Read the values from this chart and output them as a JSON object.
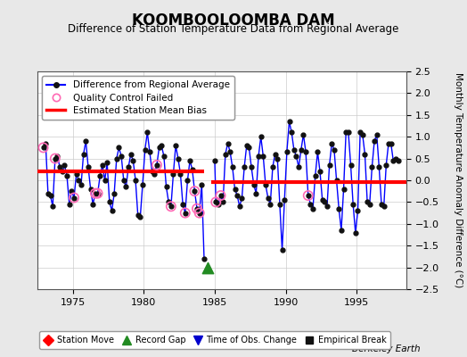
{
  "title": "KOOMBOOLOOMBA DAM",
  "subtitle": "Difference of Station Temperature Data from Regional Average",
  "ylabel": "Monthly Temperature Anomaly Difference (°C)",
  "xlim": [
    1972.5,
    1998.5
  ],
  "ylim": [
    -2.5,
    2.5
  ],
  "xticks": [
    1975,
    1980,
    1985,
    1990,
    1995
  ],
  "yticks": [
    -2.5,
    -2,
    -1.5,
    -1,
    -0.5,
    0,
    0.5,
    1,
    1.5,
    2,
    2.5
  ],
  "bias_segments": [
    {
      "x": [
        1972.5,
        1984.25
      ],
      "y": [
        0.2,
        0.2
      ]
    },
    {
      "x": [
        1984.75,
        1998.5
      ],
      "y": [
        -0.05,
        -0.05
      ]
    }
  ],
  "gap_x": 1984.5,
  "record_gap_x": 1984.5,
  "record_gap_y": -2.0,
  "main_line_color": "#0000ff",
  "bias_color": "#ff0000",
  "qc_color": "#ff69b4",
  "background_color": "#e8e8e8",
  "plot_bg_color": "#ffffff",
  "time_series": [
    [
      1972.917,
      0.75
    ],
    [
      1973.083,
      0.85
    ],
    [
      1973.25,
      -0.3
    ],
    [
      1973.417,
      -0.35
    ],
    [
      1973.583,
      -0.6
    ],
    [
      1973.75,
      0.5
    ],
    [
      1973.917,
      0.55
    ],
    [
      1974.083,
      0.3
    ],
    [
      1974.25,
      0.2
    ],
    [
      1974.417,
      0.35
    ],
    [
      1974.583,
      0.1
    ],
    [
      1974.75,
      -0.55
    ],
    [
      1974.917,
      -0.25
    ],
    [
      1975.083,
      -0.4
    ],
    [
      1975.25,
      0.15
    ],
    [
      1975.417,
      0.0
    ],
    [
      1975.583,
      -0.1
    ],
    [
      1975.75,
      0.6
    ],
    [
      1975.917,
      0.9
    ],
    [
      1976.083,
      0.3
    ],
    [
      1976.25,
      -0.2
    ],
    [
      1976.417,
      -0.55
    ],
    [
      1976.583,
      -0.3
    ],
    [
      1976.75,
      -0.3
    ],
    [
      1976.917,
      0.1
    ],
    [
      1977.083,
      0.35
    ],
    [
      1977.25,
      0.0
    ],
    [
      1977.417,
      0.4
    ],
    [
      1977.583,
      -0.5
    ],
    [
      1977.75,
      -0.7
    ],
    [
      1977.917,
      -0.3
    ],
    [
      1978.083,
      0.5
    ],
    [
      1978.25,
      0.75
    ],
    [
      1978.417,
      0.55
    ],
    [
      1978.583,
      0.0
    ],
    [
      1978.75,
      -0.15
    ],
    [
      1978.917,
      0.3
    ],
    [
      1979.083,
      0.6
    ],
    [
      1979.25,
      0.45
    ],
    [
      1979.417,
      0.0
    ],
    [
      1979.583,
      -0.8
    ],
    [
      1979.75,
      -0.85
    ],
    [
      1979.917,
      -0.1
    ],
    [
      1980.083,
      0.7
    ],
    [
      1980.25,
      1.1
    ],
    [
      1980.417,
      0.65
    ],
    [
      1980.583,
      0.2
    ],
    [
      1980.75,
      0.15
    ],
    [
      1980.917,
      0.35
    ],
    [
      1981.083,
      0.75
    ],
    [
      1981.25,
      0.8
    ],
    [
      1981.417,
      0.55
    ],
    [
      1981.583,
      -0.15
    ],
    [
      1981.75,
      -0.5
    ],
    [
      1981.917,
      -0.6
    ],
    [
      1982.083,
      0.15
    ],
    [
      1982.25,
      0.8
    ],
    [
      1982.417,
      0.5
    ],
    [
      1982.583,
      0.15
    ],
    [
      1982.75,
      -0.55
    ],
    [
      1982.917,
      -0.75
    ],
    [
      1983.083,
      0.0
    ],
    [
      1983.25,
      0.45
    ],
    [
      1983.417,
      0.25
    ],
    [
      1983.583,
      -0.25
    ],
    [
      1983.75,
      -0.65
    ],
    [
      1983.917,
      -0.75
    ],
    [
      1984.083,
      -0.1
    ],
    [
      1984.25,
      -1.8
    ],
    [
      1985.0,
      0.45
    ],
    [
      1985.083,
      -0.5
    ],
    [
      1985.25,
      -0.55
    ],
    [
      1985.417,
      -0.35
    ],
    [
      1985.583,
      -0.5
    ],
    [
      1985.75,
      0.6
    ],
    [
      1985.917,
      0.85
    ],
    [
      1986.083,
      0.65
    ],
    [
      1986.25,
      0.3
    ],
    [
      1986.417,
      -0.2
    ],
    [
      1986.583,
      -0.35
    ],
    [
      1986.75,
      -0.6
    ],
    [
      1986.917,
      -0.4
    ],
    [
      1987.083,
      0.3
    ],
    [
      1987.25,
      0.8
    ],
    [
      1987.417,
      0.75
    ],
    [
      1987.583,
      0.3
    ],
    [
      1987.75,
      -0.1
    ],
    [
      1987.917,
      -0.3
    ],
    [
      1988.083,
      0.55
    ],
    [
      1988.25,
      1.0
    ],
    [
      1988.417,
      0.55
    ],
    [
      1988.583,
      -0.1
    ],
    [
      1988.75,
      -0.4
    ],
    [
      1988.917,
      -0.55
    ],
    [
      1989.083,
      0.3
    ],
    [
      1989.25,
      0.6
    ],
    [
      1989.417,
      0.5
    ],
    [
      1989.583,
      -0.55
    ],
    [
      1989.75,
      -1.6
    ],
    [
      1989.917,
      -0.45
    ],
    [
      1990.083,
      0.65
    ],
    [
      1990.25,
      1.35
    ],
    [
      1990.417,
      1.1
    ],
    [
      1990.583,
      0.7
    ],
    [
      1990.75,
      0.55
    ],
    [
      1990.917,
      0.3
    ],
    [
      1991.083,
      0.7
    ],
    [
      1991.25,
      1.05
    ],
    [
      1991.417,
      0.65
    ],
    [
      1991.583,
      -0.35
    ],
    [
      1991.75,
      -0.55
    ],
    [
      1991.917,
      -0.65
    ],
    [
      1992.083,
      0.1
    ],
    [
      1992.25,
      0.65
    ],
    [
      1992.417,
      0.2
    ],
    [
      1992.583,
      -0.45
    ],
    [
      1992.75,
      -0.5
    ],
    [
      1992.917,
      -0.6
    ],
    [
      1993.083,
      0.35
    ],
    [
      1993.25,
      0.85
    ],
    [
      1993.417,
      0.7
    ],
    [
      1993.583,
      0.0
    ],
    [
      1993.75,
      -0.65
    ],
    [
      1993.917,
      -1.15
    ],
    [
      1994.083,
      -0.2
    ],
    [
      1994.25,
      1.1
    ],
    [
      1994.417,
      1.1
    ],
    [
      1994.583,
      0.35
    ],
    [
      1994.75,
      -0.55
    ],
    [
      1994.917,
      -1.2
    ],
    [
      1995.083,
      -0.7
    ],
    [
      1995.25,
      1.1
    ],
    [
      1995.417,
      1.05
    ],
    [
      1995.583,
      0.6
    ],
    [
      1995.75,
      -0.5
    ],
    [
      1995.917,
      -0.55
    ],
    [
      1996.083,
      0.3
    ],
    [
      1996.25,
      0.9
    ],
    [
      1996.417,
      1.05
    ],
    [
      1996.583,
      0.3
    ],
    [
      1996.75,
      -0.55
    ],
    [
      1996.917,
      -0.6
    ],
    [
      1997.083,
      0.35
    ],
    [
      1997.25,
      0.85
    ],
    [
      1997.417,
      0.85
    ],
    [
      1997.583,
      0.45
    ],
    [
      1997.75,
      0.5
    ],
    [
      1997.917,
      0.45
    ]
  ],
  "qc_failed": [
    [
      1972.917,
      0.75
    ],
    [
      1973.75,
      0.5
    ],
    [
      1975.083,
      -0.4
    ],
    [
      1976.583,
      -0.3
    ],
    [
      1976.75,
      -0.3
    ],
    [
      1980.917,
      0.35
    ],
    [
      1981.917,
      -0.6
    ],
    [
      1982.917,
      -0.75
    ],
    [
      1983.583,
      -0.25
    ],
    [
      1983.75,
      -0.65
    ],
    [
      1983.917,
      -0.75
    ],
    [
      1985.083,
      -0.5
    ],
    [
      1985.417,
      -0.35
    ],
    [
      1991.583,
      -0.35
    ]
  ],
  "legend1_labels": [
    "Difference from Regional Average",
    "Quality Control Failed",
    "Estimated Station Mean Bias"
  ],
  "legend2_labels": [
    "Station Move",
    "Record Gap",
    "Time of Obs. Change",
    "Empirical Break"
  ],
  "legend2_colors": [
    "#ff0000",
    "#228B22",
    "#0000cd",
    "#111111"
  ],
  "legend2_markers": [
    "D",
    "^",
    "v",
    "s"
  ]
}
